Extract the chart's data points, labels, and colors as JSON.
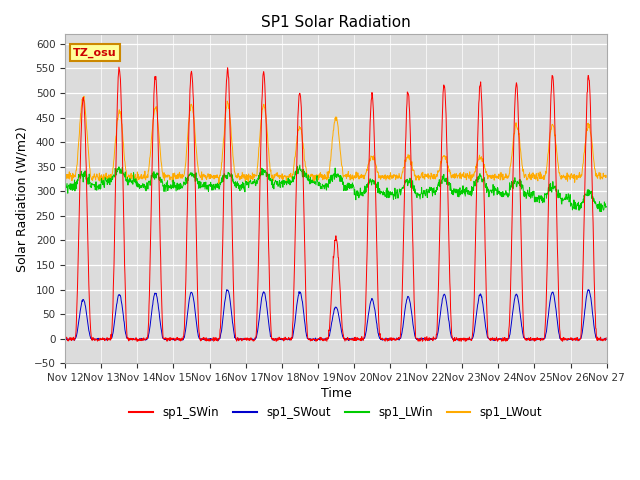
{
  "title": "SP1 Solar Radiation",
  "xlabel": "Time",
  "ylabel": "Solar Radiation (W/m2)",
  "ylim": [
    -50,
    620
  ],
  "bg_color": "#dcdcdc",
  "annotation_text": "TZ_osu",
  "annotation_bg": "#ffff99",
  "annotation_border": "#cc8800",
  "colors": {
    "SWin": "#ff0000",
    "SWout": "#0000cc",
    "LWin": "#00cc00",
    "LWout": "#ffaa00"
  },
  "legend_labels": [
    "sp1_SWin",
    "sp1_SWout",
    "sp1_LWin",
    "sp1_LWout"
  ],
  "yticks": [
    -50,
    0,
    50,
    100,
    150,
    200,
    250,
    300,
    350,
    400,
    450,
    500,
    550,
    600
  ],
  "xtick_labels": [
    "Nov 12",
    "Nov 13",
    "Nov 14",
    "Nov 15",
    "Nov 16",
    "Nov 17",
    "Nov 18",
    "Nov 19",
    "Nov 20",
    "Nov 21",
    "Nov 22",
    "Nov 23",
    "Nov 24",
    "Nov 25",
    "Nov 26",
    "Nov 27"
  ],
  "n_days": 15,
  "pts_per_hour": 4
}
